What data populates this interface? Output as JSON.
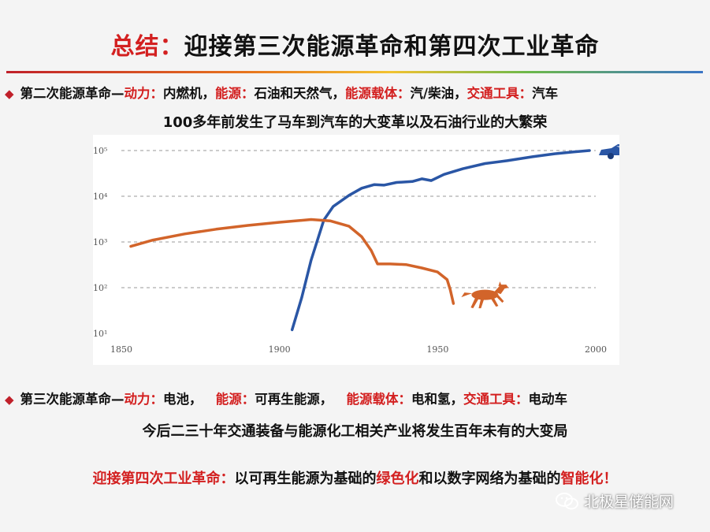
{
  "title": {
    "prefix": "总结：",
    "main": "迎接第三次能源革命和第四次工业革命"
  },
  "bullet2": {
    "head": "第二次能源革命—",
    "k1": "动力：",
    "v1": "内燃机，",
    "k2": "能源：",
    "v2": "石油和天然气，",
    "k3": "能源载体：",
    "v3": "汽/柴油，",
    "k4": "交通工具：",
    "v4": "汽车"
  },
  "subtitle2": "100多年前发生了马车到汽车的大变革以及石油行业的大繁荣",
  "bullet3": {
    "head": "第三次能源革命—",
    "k1": "动力：",
    "v1": "电池，",
    "k2": "能源：",
    "v2": "可再生能源，",
    "k3": "能源载体：",
    "v3": "电和氢，",
    "k4": "交通工具：",
    "v4": "电动车"
  },
  "subtitle3": "今后二三十年交通装备与能源化工相关产业将发生百年未有的大变局",
  "callout": {
    "p1": "迎接第四次工业革命：",
    "p2": "以可再生能源为基础的",
    "p3": "绿色化",
    "p4": "和以数字网络为基础的",
    "p5": "智能化",
    "p6": "！"
  },
  "watermark": {
    "text": "北极星储能网",
    "icon": "wechat-icon"
  },
  "colors": {
    "accent_red": "#d32020",
    "car_series": "#2a56a5",
    "horse_series": "#d2642a"
  },
  "chart_data": {
    "type": "line",
    "title": "",
    "xlabel": "",
    "ylabel": "",
    "y_scale": "log",
    "xlim": [
      1850,
      2000
    ],
    "ylim": [
      10,
      100000
    ],
    "x_ticks": [
      "1850",
      "1900",
      "1950",
      "2000"
    ],
    "y_ticks": [
      "10¹",
      "10²",
      "10³",
      "10⁴",
      "10⁵"
    ],
    "grid": "horizontal dashed",
    "series": [
      {
        "icon": "car-icon",
        "color": "#2a56a5",
        "points": [
          [
            1904,
            12
          ],
          [
            1907,
            60
          ],
          [
            1910,
            400
          ],
          [
            1914,
            3000
          ],
          [
            1917,
            6000
          ],
          [
            1922,
            10500
          ],
          [
            1926,
            15000
          ],
          [
            1930,
            18000
          ],
          [
            1933,
            17500
          ],
          [
            1937,
            20000
          ],
          [
            1942,
            21000
          ],
          [
            1945,
            24000
          ],
          [
            1948,
            22000
          ],
          [
            1952,
            30000
          ],
          [
            1958,
            40000
          ],
          [
            1965,
            52000
          ],
          [
            1972,
            60000
          ],
          [
            1980,
            73000
          ],
          [
            1987,
            85000
          ],
          [
            1993,
            93000
          ],
          [
            1998,
            100000
          ]
        ]
      },
      {
        "icon": "horse-icon",
        "color": "#d2642a",
        "points": [
          [
            1853,
            800
          ],
          [
            1860,
            1100
          ],
          [
            1870,
            1500
          ],
          [
            1880,
            1900
          ],
          [
            1890,
            2300
          ],
          [
            1900,
            2700
          ],
          [
            1910,
            3100
          ],
          [
            1916,
            2900
          ],
          [
            1922,
            2200
          ],
          [
            1926,
            1300
          ],
          [
            1929,
            650
          ],
          [
            1931,
            330
          ],
          [
            1935,
            330
          ],
          [
            1940,
            320
          ],
          [
            1945,
            270
          ],
          [
            1950,
            220
          ],
          [
            1953,
            150
          ],
          [
            1954,
            90
          ],
          [
            1955,
            45
          ]
        ]
      }
    ]
  }
}
